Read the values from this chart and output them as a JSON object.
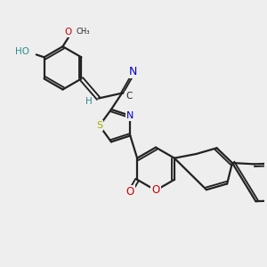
{
  "bg_color": "#eeeeee",
  "bond_color": "#222222",
  "bond_width": 1.6,
  "atom_colors": {
    "C": "#222222",
    "N": "#0000cc",
    "O": "#cc0000",
    "S": "#aaaa00",
    "H": "#2e8b8b",
    "HO": "#2e8b8b"
  },
  "font_size": 7.5
}
